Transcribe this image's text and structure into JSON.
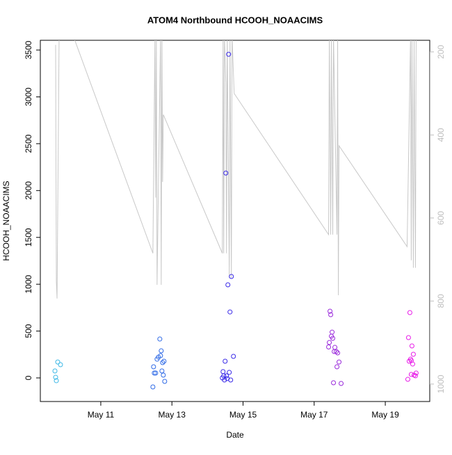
{
  "chart_data": {
    "type": "scatter",
    "title": "ATOM4 Northbound HCOOH_NOAACIMS",
    "x_label": "Date",
    "y_label": "HCOOH_NOAACIMS",
    "xlim": [
      9.3,
      20.25
    ],
    "xticks": [
      {
        "value": 11,
        "label": "May 11"
      },
      {
        "value": 13,
        "label": "May 13"
      },
      {
        "value": 15,
        "label": "May 15"
      },
      {
        "value": 17,
        "label": "May 17"
      },
      {
        "value": 19,
        "label": "May 19"
      }
    ],
    "ylim": [
      -252,
      3604
    ],
    "yticks": [
      0,
      500,
      1000,
      1500,
      2000,
      2500,
      3000,
      3500
    ],
    "y2lim": [
      1042,
      172
    ],
    "y2ticks": [
      200,
      400,
      600,
      800,
      1000
    ],
    "y2_color": "#bebebe",
    "series": [
      {
        "color": "#3db8e6",
        "x": [
          9.711,
          9.73,
          9.75,
          9.789,
          9.867
        ],
        "values": [
          74,
          7,
          -30,
          170,
          141
        ]
      },
      {
        "color": "#2f6ae6",
        "x": [
          12.465,
          12.484,
          12.504,
          12.543,
          12.582,
          12.621,
          12.66,
          12.68,
          12.699,
          12.719,
          12.738,
          12.758,
          12.777,
          12.797
        ],
        "values": [
          -96,
          119,
          52,
          52,
          200,
          222,
          415,
          237,
          289,
          74,
          163,
          30,
          178,
          -37
        ]
      },
      {
        "color": "#3a2ae8",
        "x": [
          14.418,
          14.438,
          14.457,
          14.477,
          14.496,
          14.516,
          14.535,
          14.555,
          14.574,
          14.594,
          14.613,
          14.633,
          14.652,
          14.672,
          14.73
        ],
        "values": [
          0,
          67,
          22,
          -22,
          178,
          2187,
          22,
          -7,
          994,
          3455,
          59,
          704,
          -22,
          1083,
          230
        ]
      },
      {
        "color": "#9a2adb",
        "x": [
          17.406,
          17.426,
          17.445,
          17.465,
          17.484,
          17.504,
          17.523,
          17.543,
          17.563,
          17.582,
          17.621,
          17.641,
          17.66,
          17.699,
          17.758
        ],
        "values": [
          330,
          378,
          712,
          675,
          445,
          489,
          423,
          -52,
          282,
          326,
          282,
          119,
          267,
          170,
          -59
        ]
      },
      {
        "color": "#e81ee8",
        "x": [
          19.633,
          19.652,
          19.672,
          19.691,
          19.711,
          19.73,
          19.75,
          19.77,
          19.789,
          19.73,
          19.809,
          19.848,
          19.867
        ],
        "values": [
          -15,
          430,
          178,
          697,
          200,
          185,
          341,
          148,
          252,
          37,
          30,
          22,
          52
        ]
      },
      {
        "type": "line",
        "axis": "y2",
        "color": "#c8c8c8",
        "x": [
          9.73,
          9.75,
          9.77,
          9.828,
          10.219,
          12.465,
          12.523,
          12.543,
          12.563,
          12.582,
          12.68,
          12.699,
          12.719,
          12.738,
          12.758,
          14.418,
          14.438,
          14.457,
          14.477,
          14.516,
          14.535,
          14.555,
          14.613,
          14.633,
          14.672,
          14.691,
          14.75,
          17.406,
          17.426,
          17.465,
          17.484,
          17.523,
          17.543,
          17.641,
          17.66,
          17.68,
          17.699,
          19.613,
          19.711,
          19.73,
          19.75,
          19.789,
          19.809,
          19.848,
          19.867
        ],
        "values": [
          183,
          752,
          794,
          160,
          160,
          685,
          160,
          551,
          160,
          761,
          160,
          761,
          160,
          513,
          351,
          685,
          160,
          685,
          160,
          275,
          685,
          160,
          744,
          160,
          744,
          160,
          300,
          640,
          160,
          640,
          160,
          640,
          160,
          640,
          160,
          786,
          426,
          669,
          160,
          702,
          160,
          720,
          160,
          720,
          160
        ]
      }
    ]
  }
}
